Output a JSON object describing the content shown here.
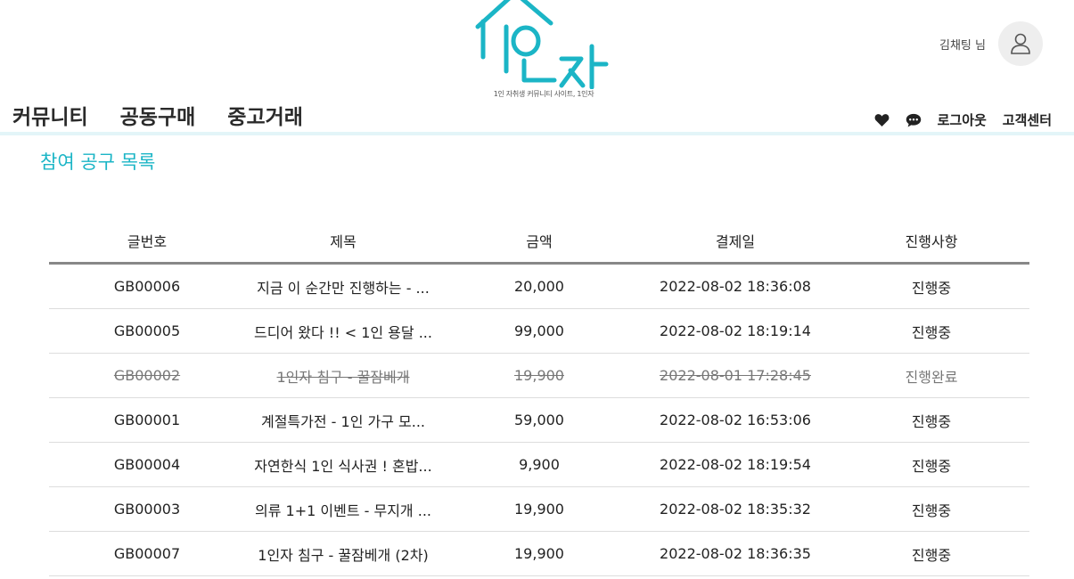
{
  "logo": {
    "subtitle": "1인 자취생 커뮤니티 사이트, 1인자",
    "brand_color": "#1bb5c6"
  },
  "user": {
    "name": "김채팅 님",
    "avatar_icon": "user-outline-icon"
  },
  "nav": {
    "items": [
      {
        "label": "커뮤니티"
      },
      {
        "label": "공동구매"
      },
      {
        "label": "중고거래"
      }
    ]
  },
  "util": {
    "heart_icon": "heart-icon",
    "chat_icon": "chat-bubble-icon",
    "logout": "로그아웃",
    "support": "고객센터"
  },
  "page": {
    "title": "참여 공구 목록"
  },
  "table": {
    "headers": [
      "글번호",
      "제목",
      "금액",
      "결제일",
      "진행사항"
    ],
    "rows": [
      {
        "id": "GB00006",
        "title": "지금 이 순간만 진행하는 - ...",
        "price": "20,000",
        "date": "2022-08-02 18:36:08",
        "status": "진행중",
        "done": false
      },
      {
        "id": "GB00005",
        "title": "드디어 왔다 !! < 1인 용달 ...",
        "price": "99,000",
        "date": "2022-08-02 18:19:14",
        "status": "진행중",
        "done": false
      },
      {
        "id": "GB00002",
        "title": "1인자 침구 - 꿀잠베개",
        "price": "19,900",
        "date": "2022-08-01 17:28:45",
        "status": "진행완료",
        "done": true
      },
      {
        "id": "GB00001",
        "title": "계절특가전 - 1인 가구 모...",
        "price": "59,000",
        "date": "2022-08-02 16:53:06",
        "status": "진행중",
        "done": false
      },
      {
        "id": "GB00004",
        "title": "자연한식 1인 식사권 ! 혼밥...",
        "price": "9,900",
        "date": "2022-08-02 18:19:54",
        "status": "진행중",
        "done": false
      },
      {
        "id": "GB00003",
        "title": "의류 1+1 이벤트 - 무지개 ...",
        "price": "19,900",
        "date": "2022-08-02 18:35:32",
        "status": "진행중",
        "done": false
      },
      {
        "id": "GB00007",
        "title": "1인자 침구 - 꿀잠베개 (2차)",
        "price": "19,900",
        "date": "2022-08-02 18:36:35",
        "status": "진행중",
        "done": false
      }
    ]
  }
}
